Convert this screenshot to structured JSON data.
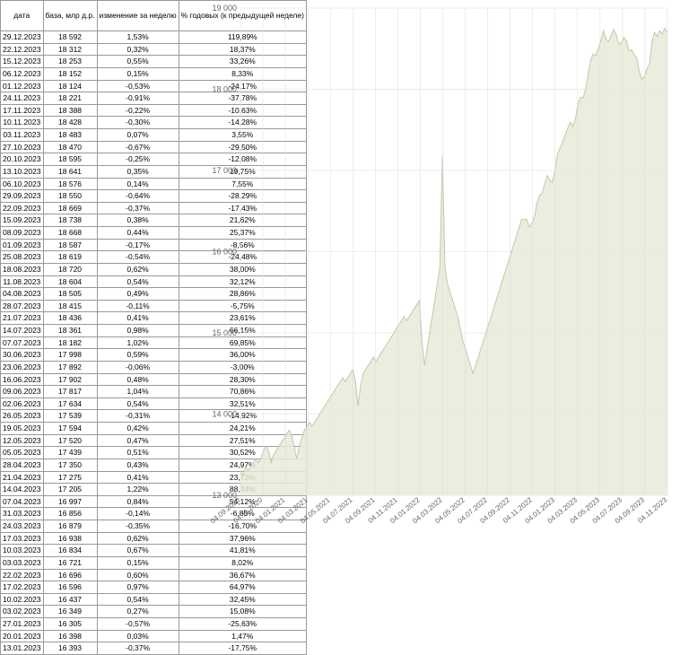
{
  "table": {
    "columns": [
      "дата",
      "база, млр д.р.",
      "изменение за неделю",
      "% годовых (к предыдущей неделе)"
    ],
    "rows": [
      [
        "29.12.2023",
        "18 592",
        "1,53%",
        "119,89%"
      ],
      [
        "22.12.2023",
        "18 312",
        "0,32%",
        "18,37%"
      ],
      [
        "15.12.2023",
        "18 253",
        "0,55%",
        "33,26%"
      ],
      [
        "06.12.2023",
        "18 152",
        "0,15%",
        "8,33%"
      ],
      [
        "01.12.2023",
        "18 124",
        "-0,53%",
        "-24,17%"
      ],
      [
        "24.11.2023",
        "18 221",
        "-0,91%",
        "-37,78%"
      ],
      [
        "17.11.2023",
        "18 388",
        "-0,22%",
        "-10,63%"
      ],
      [
        "10.11.2023",
        "18 428",
        "-0,30%",
        "-14,28%"
      ],
      [
        "03.11.2023",
        "18 483",
        "0,07%",
        "3,55%"
      ],
      [
        "27.10.2023",
        "18 470",
        "-0,67%",
        "-29,50%"
      ],
      [
        "20.10.2023",
        "18 595",
        "-0,25%",
        "-12,08%"
      ],
      [
        "13.10.2023",
        "18 641",
        "0,35%",
        "19,75%"
      ],
      [
        "06.10.2023",
        "18 576",
        "0,14%",
        "7,55%"
      ],
      [
        "29.09.2023",
        "18 550",
        "-0,64%",
        "-28,29%"
      ],
      [
        "22.09.2023",
        "18 669",
        "-0,37%",
        "-17,43%"
      ],
      [
        "15.09.2023",
        "18 738",
        "0,38%",
        "21,62%"
      ],
      [
        "08.09.2023",
        "18 668",
        "0,44%",
        "25,37%"
      ],
      [
        "01.09.2023",
        "18 587",
        "-0,17%",
        "-8,56%"
      ],
      [
        "25.08.2023",
        "18 619",
        "-0,54%",
        "-24,48%"
      ],
      [
        "18.08.2023",
        "18 720",
        "0,62%",
        "38,00%"
      ],
      [
        "11.08.2023",
        "18 604",
        "0,54%",
        "32,12%"
      ],
      [
        "04.08.2023",
        "18 505",
        "0,49%",
        "28,86%"
      ],
      [
        "28.07.2023",
        "18 415",
        "-0,11%",
        "-5,75%"
      ],
      [
        "21.07.2023",
        "18 436",
        "0,41%",
        "23,61%"
      ],
      [
        "14.07.2023",
        "18 361",
        "0,98%",
        "66,15%"
      ],
      [
        "07.07.2023",
        "18 182",
        "1,02%",
        "69,85%"
      ],
      [
        "30.06.2023",
        "17 998",
        "0,59%",
        "36,00%"
      ],
      [
        "23.06.2023",
        "17 892",
        "-0,06%",
        "-3,00%"
      ],
      [
        "16.06.2023",
        "17 902",
        "0,48%",
        "28,30%"
      ],
      [
        "09.06.2023",
        "17 817",
        "1,04%",
        "70,86%"
      ],
      [
        "02.06.2023",
        "17 634",
        "0,54%",
        "32,51%"
      ],
      [
        "26.05.2023",
        "17 539",
        "-0,31%",
        "-14,92%"
      ],
      [
        "19.05.2023",
        "17 594",
        "0,42%",
        "24,21%"
      ],
      [
        "12.05.2023",
        "17 520",
        "0,47%",
        "27,51%"
      ],
      [
        "05.05.2023",
        "17 439",
        "0,51%",
        "30,52%"
      ],
      [
        "28.04.2023",
        "17 350",
        "0,43%",
        "24,97%"
      ],
      [
        "21.04.2023",
        "17 275",
        "0,41%",
        "23,73%"
      ],
      [
        "14.04.2023",
        "17 205",
        "1,22%",
        "88,34%"
      ],
      [
        "07.04.2023",
        "16 997",
        "0,84%",
        "54,12%"
      ],
      [
        "31.03.2023",
        "16 856",
        "-0,14%",
        "-6,85%"
      ],
      [
        "24.03.2023",
        "16 879",
        "-0,35%",
        "-16,70%"
      ],
      [
        "17.03.2023",
        "16 938",
        "0,62%",
        "37,96%"
      ],
      [
        "10.03.2023",
        "16 834",
        "0,67%",
        "41,81%"
      ],
      [
        "03.03.2023",
        "16 721",
        "0,15%",
        "8,02%"
      ],
      [
        "22.02.2023",
        "16 696",
        "0,60%",
        "36,67%"
      ],
      [
        "17.02.2023",
        "16 596",
        "0,97%",
        "64,97%"
      ],
      [
        "10.02.2023",
        "16 437",
        "0,54%",
        "32,45%"
      ],
      [
        "03.02.2023",
        "16 349",
        "0,27%",
        "15,08%"
      ],
      [
        "27.01.2023",
        "16 305",
        "-0,57%",
        "-25,63%"
      ],
      [
        "20.01.2023",
        "16 398",
        "0,03%",
        "1,47%"
      ],
      [
        "13.01.2023",
        "16 393",
        "-0,37%",
        "-17,75%"
      ]
    ]
  },
  "chart": {
    "type": "area",
    "background_color": "#ffffff",
    "fill_color": "#e8ead9",
    "fill_opacity": 0.85,
    "stroke_color": "#c4c8a8",
    "grid_color": "#dddddd",
    "label_color": "#666666",
    "ylim": [
      13000,
      19000
    ],
    "yticks": [
      13000,
      14000,
      15000,
      16000,
      17000,
      18000,
      19000
    ],
    "ytick_labels": [
      "13 000",
      "14 000",
      "15 000",
      "16 000",
      "17 000",
      "18 000",
      "19 000"
    ],
    "xtick_labels": [
      "04.09.2020",
      "04.11.2020",
      "04.01.2021",
      "04.03.2021",
      "04.05.2021",
      "04.07.2021",
      "04.09.2021",
      "04.11.2021",
      "04.01.2022",
      "04.03.2022",
      "04.05.2022",
      "04.07.2022",
      "04.09.2022",
      "04.11.2022",
      "04.01.2023",
      "04.03.2023",
      "04.05.2023",
      "04.07.2023",
      "04.09.2023",
      "04.11.2023"
    ],
    "data": [
      13300,
      13250,
      13350,
      13300,
      13350,
      13400,
      13450,
      13400,
      13450,
      13550,
      13600,
      13550,
      13400,
      13500,
      13550,
      13600,
      13650,
      13700,
      13750,
      13800,
      13750,
      13600,
      13450,
      13600,
      13700,
      13800,
      13850,
      13900,
      13850,
      13900,
      13950,
      14000,
      14050,
      14100,
      14150,
      14200,
      14250,
      14300,
      14350,
      14400,
      14450,
      14400,
      14450,
      14500,
      14550,
      14400,
      14100,
      14350,
      14500,
      14550,
      14600,
      14650,
      14700,
      14650,
      14700,
      14750,
      14800,
      14850,
      14900,
      14950,
      15000,
      15050,
      15100,
      15150,
      15200,
      15150,
      15200,
      15250,
      15300,
      15350,
      15400,
      14900,
      14600,
      14800,
      15000,
      15200,
      15400,
      15600,
      15800,
      17200,
      15800,
      15600,
      15500,
      15400,
      15300,
      15200,
      15050,
      14900,
      14800,
      14700,
      14600,
      14500,
      14600,
      14700,
      14800,
      14900,
      15000,
      15100,
      15200,
      15300,
      15400,
      15500,
      15600,
      15700,
      15800,
      15900,
      16000,
      16100,
      16200,
      16300,
      16400,
      16393,
      16398,
      16305,
      16349,
      16437,
      16596,
      16696,
      16721,
      16834,
      16938,
      16879,
      16856,
      16997,
      17205,
      17275,
      17350,
      17439,
      17520,
      17594,
      17539,
      17634,
      17817,
      17902,
      17892,
      17998,
      18182,
      18361,
      18436,
      18415,
      18505,
      18604,
      18720,
      18619,
      18587,
      18668,
      18738,
      18669,
      18550,
      18576,
      18641,
      18595,
      18470,
      18483,
      18428,
      18388,
      18221,
      18124,
      18152,
      18253,
      18312,
      18592,
      18700,
      18650,
      18720,
      18680,
      18750,
      18700
    ]
  }
}
